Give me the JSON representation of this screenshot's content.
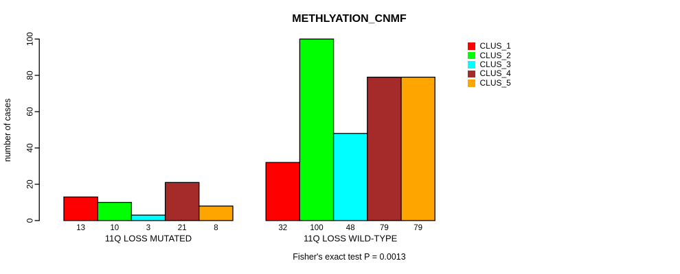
{
  "chart_data": {
    "type": "bar",
    "title": "METHLYATION_CNMF",
    "ylabel": "number of cases",
    "xlabel": "",
    "ylim": [
      0,
      100
    ],
    "yticks": [
      0,
      20,
      40,
      60,
      80,
      100
    ],
    "grid": false,
    "legend_position": "right",
    "categories": [
      "11Q LOSS MUTATED",
      "11Q LOSS WILD-TYPE"
    ],
    "series": [
      {
        "name": "CLUS_1",
        "color": "#FF0000",
        "values": [
          13,
          32
        ]
      },
      {
        "name": "CLUS_2",
        "color": "#00FF00",
        "values": [
          10,
          100
        ]
      },
      {
        "name": "CLUS_3",
        "color": "#00FFFF",
        "values": [
          3,
          48
        ]
      },
      {
        "name": "CLUS_4",
        "color": "#A52A2A",
        "values": [
          21,
          79
        ]
      },
      {
        "name": "CLUS_5",
        "color": "#FFA500",
        "values": [
          8,
          79
        ]
      }
    ],
    "bar_value_labels_shown": true,
    "annotation": "Fisher's exact test P = 0.0013"
  }
}
